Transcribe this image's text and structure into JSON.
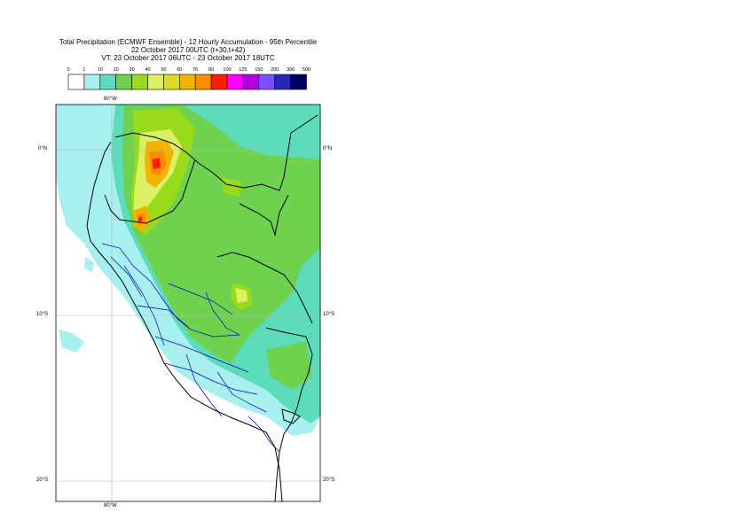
{
  "title": {
    "line1": "Total Precipitation (ECMWF Ensemble) - 12 Hourly Accumulation - 95th Percentile",
    "line2": "22 October 2017 00UTC (t+30,t+42)",
    "line3": "VT: 23 October 2017 06UTC - 23 October 2017 18UTC"
  },
  "legend": {
    "ticks": [
      "0",
      "1",
      "10",
      "20",
      "30",
      "40",
      "50",
      "60",
      "70",
      "80",
      "100",
      "125",
      "150",
      "200",
      "300",
      "500"
    ],
    "colors": [
      "#ffffff",
      "#a8f0f0",
      "#5cdcb8",
      "#6ed24e",
      "#9ada1c",
      "#dcf064",
      "#dcdc28",
      "#f0b400",
      "#ff8c00",
      "#ff1e00",
      "#ff00ff",
      "#b400dc",
      "#7850ff",
      "#2828b4",
      "#000060"
    ]
  },
  "map": {
    "lon_labels": {
      "top": "80°W",
      "bottom": "80°W"
    },
    "lat_labels": {
      "eq_left": "0°N",
      "eq_right": "0°N",
      "s10_left": "10°S",
      "s10_right": "10°S",
      "s20_left": "20°S",
      "s20_right": "20°S"
    },
    "colors": {
      "ocean": "#ffffff",
      "band_1": "#a8f0f0",
      "band_10": "#5cdcb8",
      "band_20": "#6ed24e",
      "band_30": "#9ada1c",
      "band_40": "#dcf064",
      "band_60": "#f0b400",
      "band_70": "#ff8c00",
      "band_80": "#ff1e00",
      "border_country": "#000000",
      "border_region": "#0000c8",
      "graticule": "#b4b4b4"
    }
  }
}
